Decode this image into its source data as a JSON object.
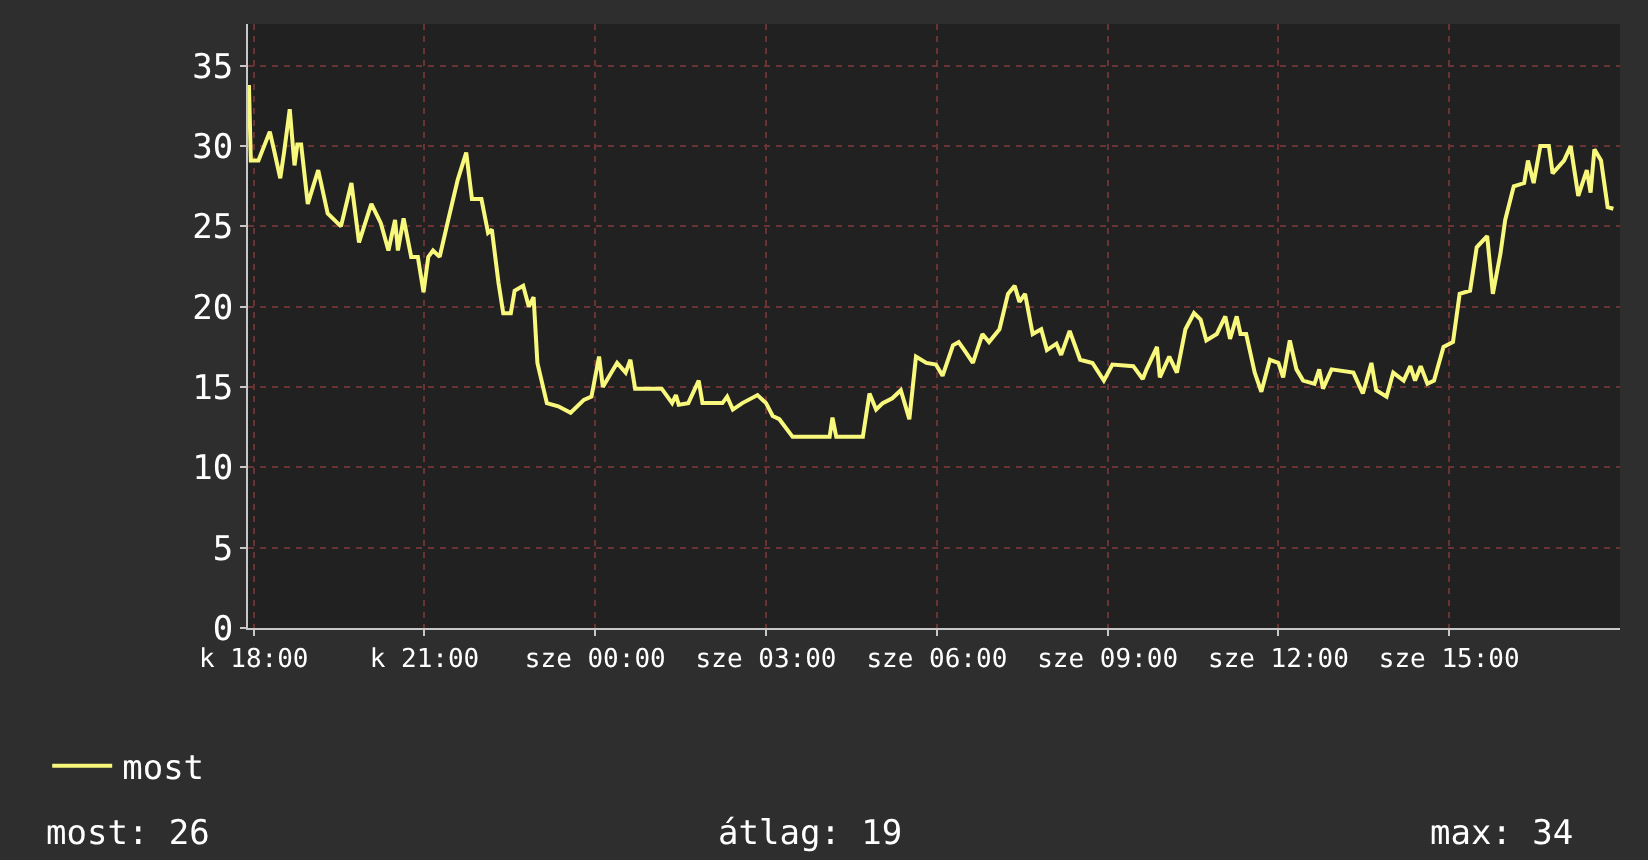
{
  "chart_data": {
    "type": "line",
    "legend": "bottom left",
    "grid": true,
    "line_style": "solid",
    "marker": "none",
    "xlim": [
      "--01-06T17:54",
      "--01-07T18:00"
    ],
    "ylim": [
      0,
      37.6
    ],
    "xticks": [
      {
        "value": "--01-06T18:00",
        "label": "k 18:00"
      },
      {
        "value": "--01-06T21:00",
        "label": "k 21:00"
      },
      {
        "value": "--01-07T00:00",
        "label": "sze 00:00"
      },
      {
        "value": "--01-07T03:00",
        "label": "sze 03:00"
      },
      {
        "value": "--01-07T06:00",
        "label": "sze 06:00"
      },
      {
        "value": "--01-07T09:00",
        "label": "sze 09:00"
      },
      {
        "value": "--01-07T12:00",
        "label": "sze 12:00"
      },
      {
        "value": "--01-07T15:00",
        "label": "sze 15:00"
      }
    ],
    "yticks": [
      0,
      5,
      10,
      15,
      20,
      25,
      30,
      35
    ],
    "annotations": [
      "most: 26",
      "átlag: 19",
      "max: 34"
    ],
    "x": [
      "--01-06T17:55",
      "--01-06T17:57",
      "--01-06T18:05",
      "--01-06T18:17",
      "--01-06T18:22",
      "--01-06T18:28",
      "--01-06T18:32",
      "--01-06T18:38",
      "--01-06T18:43",
      "--01-06T18:46",
      "--01-06T18:50",
      "--01-06T18:57",
      "--01-06T19:08",
      "--01-06T19:18",
      "--01-06T19:32",
      "--01-06T19:43",
      "--01-06T19:51",
      "--01-06T20:04",
      "--01-06T20:14",
      "--01-06T20:22",
      "--01-06T20:29",
      "--01-06T20:32",
      "--01-06T20:38",
      "--01-06T20:46",
      "--01-06T20:53",
      "--01-06T20:59",
      "--01-06T21:04",
      "--01-06T21:09",
      "--01-06T21:16",
      "--01-06T21:25",
      "--01-06T21:35",
      "--01-06T21:44",
      "--01-06T21:50",
      "--01-06T22:00",
      "--01-06T22:07",
      "--01-06T22:11",
      "--01-06T22:18",
      "--01-06T22:23",
      "--01-06T22:31",
      "--01-06T22:35",
      "--01-06T22:44",
      "--01-06T22:50",
      "--01-06T22:55",
      "--01-06T22:59",
      "--01-06T23:09",
      "--01-06T23:21",
      "--01-06T23:34",
      "--01-06T23:48",
      "--01-06T23:56",
      "--01-07T00:04",
      "--01-07T00:08",
      "--01-07T00:17",
      "--01-07T00:23",
      "--01-07T00:32",
      "--01-07T00:37",
      "--01-07T00:42",
      "--01-07T01:10",
      "--01-07T01:21",
      "--01-07T01:25",
      "--01-07T01:28",
      "--01-07T01:38",
      "--01-07T01:49",
      "--01-07T01:53",
      "--01-07T02:14",
      "--01-07T02:19",
      "--01-07T02:25",
      "--01-07T02:35",
      "--01-07T02:51",
      "--01-07T03:00",
      "--01-07T03:07",
      "--01-07T03:14",
      "--01-07T03:28",
      "--01-07T04:07",
      "--01-07T04:10",
      "--01-07T04:14",
      "--01-07T04:42",
      "--01-07T04:49",
      "--01-07T04:56",
      "--01-07T05:03",
      "--01-07T05:13",
      "--01-07T05:22",
      "--01-07T05:31",
      "--01-07T05:38",
      "--01-07T05:49",
      "--01-07T05:59",
      "--01-07T06:06",
      "--01-07T06:17",
      "--01-07T06:23",
      "--01-07T06:29",
      "--01-07T06:38",
      "--01-07T06:48",
      "--01-07T06:55",
      "--01-07T07:06",
      "--01-07T07:15",
      "--01-07T07:22",
      "--01-07T07:27",
      "--01-07T07:33",
      "--01-07T07:41",
      "--01-07T07:50",
      "--01-07T07:56",
      "--01-07T08:06",
      "--01-07T08:11",
      "--01-07T08:20",
      "--01-07T08:31",
      "--01-07T08:44",
      "--01-07T08:56",
      "--01-07T09:05",
      "--01-07T09:27",
      "--01-07T09:37",
      "--01-07T09:41",
      "--01-07T09:52",
      "--01-07T09:55",
      "--01-07T10:05",
      "--01-07T10:13",
      "--01-07T10:22",
      "--01-07T10:31",
      "--01-07T10:38",
      "--01-07T10:44",
      "--01-07T10:55",
      "--01-07T11:04",
      "--01-07T11:09",
      "--01-07T11:16",
      "--01-07T11:20",
      "--01-07T11:26",
      "--01-07T11:35",
      "--01-07T11:42",
      "--01-07T11:51",
      "--01-07T12:00",
      "--01-07T12:05",
      "--01-07T12:12",
      "--01-07T12:19",
      "--01-07T12:26",
      "--01-07T12:38",
      "--01-07T12:43",
      "--01-07T12:47",
      "--01-07T12:56",
      "--01-07T13:19",
      "--01-07T13:29",
      "--01-07T13:38",
      "--01-07T13:43",
      "--01-07T13:54",
      "--01-07T14:01",
      "--01-07T14:12",
      "--01-07T14:19",
      "--01-07T14:24",
      "--01-07T14:30",
      "--01-07T14:37",
      "--01-07T14:44",
      "--01-07T14:54",
      "--01-07T15:04",
      "--01-07T15:11",
      "--01-07T15:22",
      "--01-07T15:29",
      "--01-07T15:40",
      "--01-07T15:46",
      "--01-07T15:54",
      "--01-07T15:59",
      "--01-07T16:08",
      "--01-07T16:19",
      "--01-07T16:23",
      "--01-07T16:29",
      "--01-07T16:36",
      "--01-07T16:45",
      "--01-07T16:49",
      "--01-07T17:01",
      "--01-07T17:08",
      "--01-07T17:16",
      "--01-07T17:25",
      "--01-07T17:29",
      "--01-07T17:33",
      "--01-07T17:40",
      "--01-07T17:47",
      "--01-07T17:53"
    ],
    "series": [
      {
        "name": "most",
        "color": "#f8f87c",
        "values": [
          33.8,
          29.1,
          29.1,
          30.9,
          29.6,
          28.0,
          29.6,
          32.3,
          28.8,
          30.1,
          30.1,
          26.4,
          28.5,
          25.8,
          25.0,
          27.7,
          24.0,
          26.4,
          25.2,
          23.5,
          25.4,
          23.5,
          25.5,
          23.1,
          23.1,
          20.9,
          23.1,
          23.5,
          23.1,
          25.4,
          27.9,
          29.6,
          26.7,
          26.7,
          24.6,
          24.8,
          21.5,
          19.6,
          19.6,
          21.0,
          21.3,
          20.0,
          20.6,
          16.5,
          14.0,
          13.8,
          13.4,
          14.2,
          14.4,
          16.9,
          15.0,
          15.9,
          16.5,
          15.9,
          16.7,
          14.9,
          14.9,
          14.0,
          14.5,
          13.9,
          14.0,
          15.4,
          14.0,
          14.0,
          14.4,
          13.6,
          14.0,
          14.5,
          14.0,
          13.2,
          13.0,
          11.9,
          11.9,
          13.1,
          11.9,
          11.9,
          14.6,
          13.6,
          14.0,
          14.3,
          14.8,
          13.0,
          16.9,
          16.5,
          16.4,
          15.7,
          17.6,
          17.8,
          17.3,
          16.5,
          18.3,
          17.8,
          18.6,
          20.8,
          21.3,
          20.3,
          20.8,
          18.3,
          18.6,
          17.3,
          17.7,
          17.0,
          18.5,
          16.7,
          16.5,
          15.4,
          16.4,
          16.3,
          15.5,
          16.1,
          17.5,
          15.6,
          16.9,
          15.9,
          18.6,
          19.6,
          19.2,
          17.9,
          18.3,
          19.4,
          18.0,
          19.4,
          18.3,
          18.3,
          15.9,
          14.7,
          16.7,
          16.5,
          15.6,
          17.9,
          16.1,
          15.4,
          15.2,
          16.1,
          14.9,
          16.1,
          15.9,
          14.6,
          16.5,
          14.8,
          14.4,
          15.9,
          15.4,
          16.3,
          15.4,
          16.3,
          15.2,
          15.4,
          17.5,
          17.8,
          20.8,
          21.0,
          23.7,
          24.4,
          20.8,
          23.3,
          25.4,
          27.5,
          27.7,
          29.1,
          27.7,
          30.0,
          30.0,
          28.3,
          29.1,
          30.0,
          26.9,
          28.5,
          27.1,
          29.8,
          29.1,
          26.2,
          26.1
        ]
      }
    ]
  }
}
